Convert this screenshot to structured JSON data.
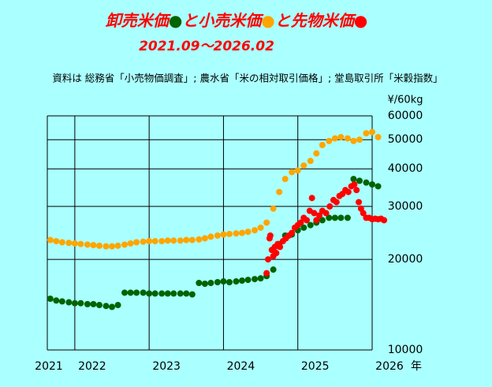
{
  "chart_data": {
    "type": "scatter",
    "title_parts": [
      {
        "text": "卸売米価",
        "color": "#ff0000"
      },
      {
        "text": "●",
        "color": "#006400"
      },
      {
        "text": "と小売米価",
        "color": "#ff0000"
      },
      {
        "text": "●",
        "color": "#ffa500"
      },
      {
        "text": "と先物米価",
        "color": "#ff0000"
      },
      {
        "text": "●",
        "color": "#ff0000"
      }
    ],
    "subtitle": "2021.09～2026.02",
    "source": "資料は 総務省「小売物価調査」; 農水省「米の相対取引価格」; 堂島取引所「米穀指数」",
    "y_unit": "¥/60kg",
    "x_label": "年",
    "log_scale_y": true,
    "grid": true,
    "xlim": [
      2021.63,
      2026.0
    ],
    "ylim": [
      10000,
      60000
    ],
    "xticks": [
      2021,
      2022,
      2023,
      2024,
      2025,
      2026
    ],
    "yticks": [
      10000,
      20000,
      30000,
      40000,
      50000,
      60000
    ],
    "series": [
      {
        "name": "小売米価",
        "color": "#ffa500",
        "x": [
          2021.67,
          2021.75,
          2021.83,
          2021.92,
          2022.0,
          2022.08,
          2022.17,
          2022.25,
          2022.33,
          2022.42,
          2022.5,
          2022.58,
          2022.67,
          2022.75,
          2022.83,
          2022.92,
          2023.0,
          2023.08,
          2023.17,
          2023.25,
          2023.33,
          2023.42,
          2023.5,
          2023.58,
          2023.67,
          2023.75,
          2023.83,
          2023.92,
          2024.0,
          2024.08,
          2024.17,
          2024.25,
          2024.33,
          2024.42,
          2024.5,
          2024.58,
          2024.67,
          2024.75,
          2024.83,
          2024.92,
          2025.0,
          2025.08,
          2025.17,
          2025.25,
          2025.33,
          2025.42,
          2025.5,
          2025.58,
          2025.67,
          2025.75,
          2025.83,
          2025.92,
          2026.0,
          2026.08
        ],
        "values": [
          23200,
          23000,
          22800,
          22700,
          22600,
          22500,
          22400,
          22300,
          22200,
          22100,
          22100,
          22200,
          22400,
          22600,
          22800,
          22900,
          23000,
          23000,
          23000,
          23100,
          23100,
          23100,
          23200,
          23200,
          23300,
          23500,
          23800,
          24000,
          24200,
          24300,
          24400,
          24500,
          24700,
          25000,
          25500,
          26500,
          29500,
          33500,
          37000,
          39000,
          39500,
          41000,
          42500,
          45000,
          48000,
          49500,
          50500,
          51000,
          50500,
          49500,
          50000,
          52500,
          53000,
          51000
        ]
      },
      {
        "name": "卸売米価",
        "color": "#006400",
        "x": [
          2021.67,
          2021.75,
          2021.83,
          2021.92,
          2022.0,
          2022.08,
          2022.17,
          2022.25,
          2022.33,
          2022.42,
          2022.5,
          2022.58,
          2022.67,
          2022.75,
          2022.83,
          2022.92,
          2023.0,
          2023.08,
          2023.17,
          2023.25,
          2023.33,
          2023.42,
          2023.5,
          2023.58,
          2023.67,
          2023.75,
          2023.83,
          2023.92,
          2024.0,
          2024.08,
          2024.17,
          2024.25,
          2024.33,
          2024.42,
          2024.5,
          2024.58,
          2024.67,
          2024.75,
          2024.83,
          2024.92,
          2025.0,
          2025.08,
          2025.17,
          2025.25,
          2025.33,
          2025.42,
          2025.5,
          2025.58,
          2025.67,
          2025.75,
          2025.83,
          2025.92,
          2026.0,
          2026.08
        ],
        "values": [
          14800,
          14600,
          14500,
          14400,
          14300,
          14300,
          14200,
          14200,
          14100,
          14000,
          13900,
          14100,
          15500,
          15500,
          15500,
          15500,
          15400,
          15400,
          15400,
          15400,
          15400,
          15400,
          15400,
          15300,
          16700,
          16600,
          16700,
          16800,
          16900,
          16800,
          16900,
          17000,
          17100,
          17200,
          17300,
          17600,
          18500,
          22500,
          24000,
          24200,
          25000,
          25500,
          26000,
          26500,
          27000,
          27500,
          27500,
          27500,
          27500,
          37000,
          36500,
          36000,
          35500,
          35000
        ]
      },
      {
        "name": "先物米価",
        "color": "#ff0000",
        "x": [
          2024.58,
          2024.6,
          2024.62,
          2024.63,
          2024.65,
          2024.67,
          2024.69,
          2024.71,
          2024.73,
          2024.76,
          2024.8,
          2024.84,
          2024.88,
          2024.92,
          2024.96,
          2025.0,
          2025.04,
          2025.08,
          2025.12,
          2025.16,
          2025.19,
          2025.22,
          2025.25,
          2025.29,
          2025.33,
          2025.38,
          2025.43,
          2025.48,
          2025.52,
          2025.56,
          2025.6,
          2025.64,
          2025.68,
          2025.72,
          2025.76,
          2025.79,
          2025.82,
          2025.85,
          2025.88,
          2025.92,
          2025.96,
          2026.0,
          2026.04,
          2026.08,
          2026.12,
          2026.16
        ],
        "values": [
          18000,
          20000,
          23500,
          24000,
          21500,
          20500,
          22000,
          21000,
          22500,
          22000,
          23000,
          23500,
          24000,
          24500,
          25500,
          26000,
          26500,
          27500,
          27000,
          29000,
          32000,
          28500,
          27000,
          28000,
          29000,
          28500,
          30000,
          31500,
          31000,
          32500,
          33000,
          34000,
          33500,
          35000,
          35500,
          34000,
          31000,
          29500,
          28500,
          27500,
          27500,
          27200,
          27300,
          27200,
          27300,
          27000
        ]
      }
    ]
  }
}
